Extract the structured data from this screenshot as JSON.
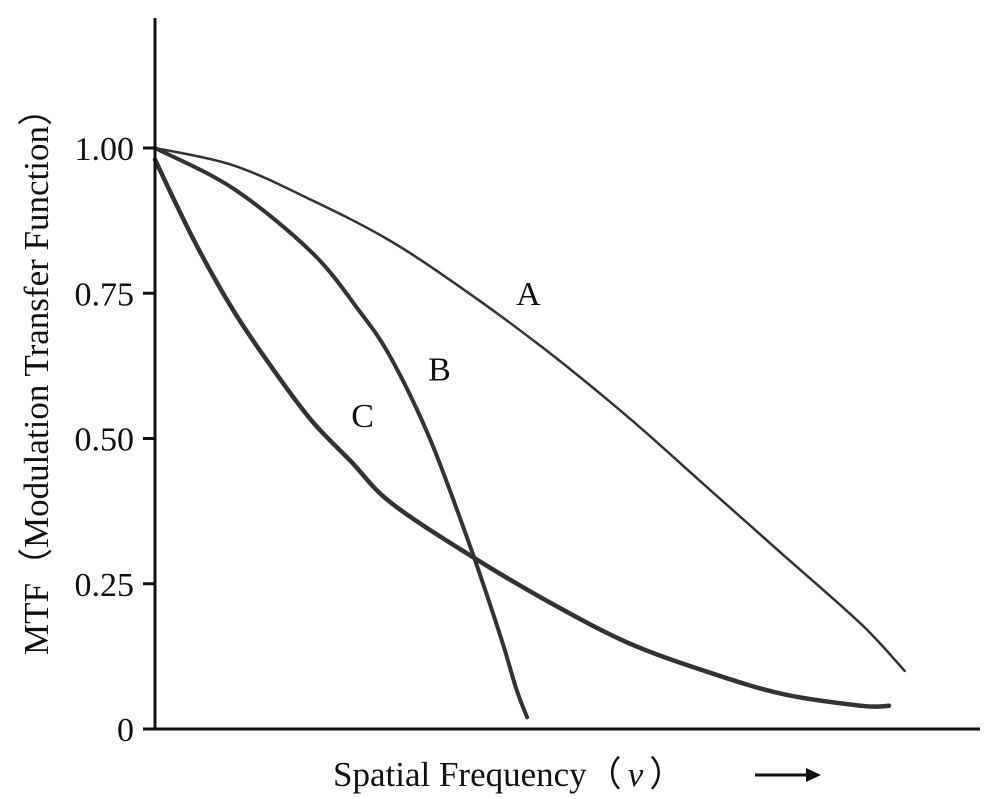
{
  "chart_data": {
    "type": "line",
    "title": "",
    "xlabel": "Spatial Frequency（",
    "xlabel_var": "ν",
    "xlabel_end": "）",
    "ylabel": "MTF（Modulation Transfer Function）",
    "yticks": [
      1.0,
      0.75,
      0.5,
      0.25,
      0
    ],
    "ytick_labels": [
      "1.00",
      "0.75",
      "0.50",
      "0.25",
      "0"
    ],
    "ylim": [
      0,
      1.0
    ],
    "xlim": [
      0,
      1.0
    ],
    "grid": false,
    "legend": "none",
    "series": [
      {
        "name": "A",
        "x": [
          0,
          0.1,
          0.2,
          0.3,
          0.4,
          0.5,
          0.6,
          0.7,
          0.8,
          0.9,
          0.955
        ],
        "y": [
          1.0,
          0.97,
          0.91,
          0.84,
          0.75,
          0.65,
          0.54,
          0.42,
          0.3,
          0.18,
          0.1
        ]
      },
      {
        "name": "B",
        "x": [
          0,
          0.1,
          0.2,
          0.26,
          0.3,
          0.35,
          0.4,
          0.44,
          0.46,
          0.474
        ],
        "y": [
          1.0,
          0.93,
          0.82,
          0.72,
          0.64,
          0.5,
          0.32,
          0.16,
          0.07,
          0.02
        ]
      },
      {
        "name": "C",
        "x": [
          0,
          0.05,
          0.1,
          0.15,
          0.2,
          0.25,
          0.3,
          0.4,
          0.5,
          0.6,
          0.7,
          0.8,
          0.9,
          0.935
        ],
        "y": [
          0.98,
          0.84,
          0.72,
          0.62,
          0.53,
          0.46,
          0.39,
          0.3,
          0.22,
          0.15,
          0.1,
          0.06,
          0.04,
          0.04
        ]
      }
    ]
  },
  "colors": {
    "axis": "#111111",
    "curve": "#333333",
    "background": "#ffffff"
  }
}
